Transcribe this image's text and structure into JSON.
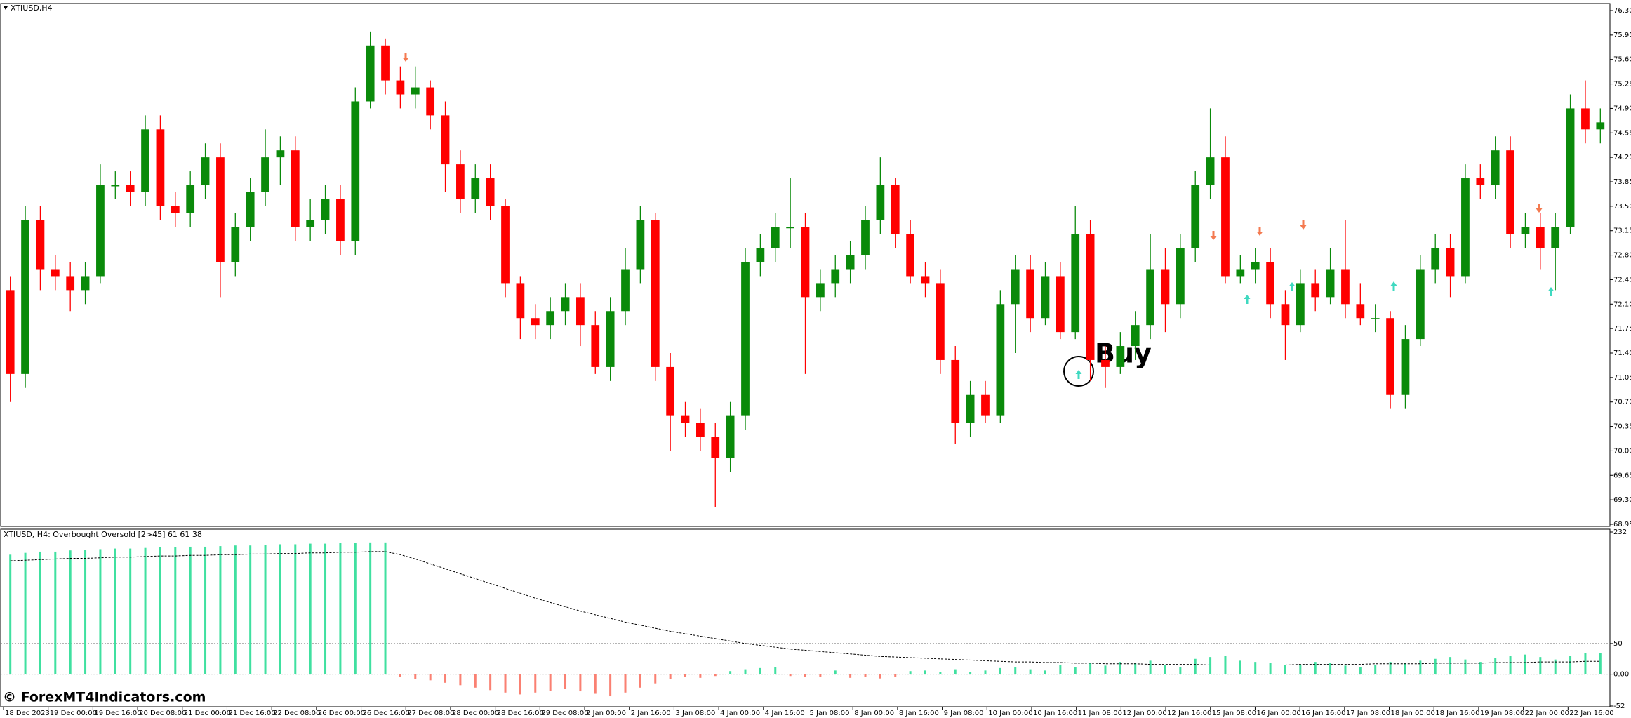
{
  "chart_data": [
    {
      "type": "candlestick",
      "title": "XTIUSD,H4",
      "open": [
        72.3,
        71.1,
        73.3,
        72.6,
        72.5,
        72.3,
        72.5,
        73.8,
        73.8,
        73.7,
        74.6,
        73.5,
        73.4,
        73.8,
        74.2,
        72.7,
        73.2,
        73.7,
        74.2,
        74.3,
        73.2,
        73.3,
        73.6,
        73.0,
        75.0,
        75.8,
        75.3,
        75.1,
        75.2,
        74.8,
        74.1,
        73.6,
        73.9,
        73.5,
        72.4,
        71.9,
        71.8,
        72.0,
        72.2,
        71.8,
        71.2,
        72.0,
        72.6,
        73.3,
        71.2,
        70.5,
        70.4,
        70.2,
        69.9,
        70.5,
        72.7,
        72.9,
        73.2,
        73.2,
        72.2,
        72.4,
        72.6,
        72.8,
        73.3,
        73.8,
        73.1,
        72.5,
        72.4,
        71.3,
        70.4,
        70.8,
        70.5,
        72.1,
        72.6,
        71.9,
        72.5,
        71.7,
        73.1,
        71.3,
        71.2,
        71.5,
        71.8,
        72.6,
        72.1,
        72.9,
        73.8,
        74.2,
        72.5,
        72.6,
        72.7,
        72.1,
        71.8,
        72.4,
        72.2,
        72.6,
        72.1,
        71.9,
        71.9,
        70.8,
        71.6,
        72.6,
        72.9,
        72.5,
        73.9,
        73.8,
        74.3,
        73.1,
        73.2,
        72.9,
        73.2,
        74.9,
        74.6
      ],
      "high": [
        72.5,
        73.5,
        73.5,
        72.8,
        72.7,
        72.7,
        74.1,
        74.0,
        74.0,
        74.8,
        74.8,
        73.7,
        74.0,
        74.4,
        74.4,
        73.4,
        73.9,
        74.6,
        74.5,
        74.5,
        73.6,
        73.8,
        73.8,
        75.2,
        76.0,
        75.9,
        75.5,
        75.5,
        75.3,
        75.0,
        74.3,
        74.1,
        74.1,
        73.6,
        72.5,
        72.1,
        72.2,
        72.4,
        72.4,
        72.0,
        72.2,
        72.9,
        73.5,
        73.4,
        71.4,
        70.7,
        70.6,
        70.4,
        70.7,
        72.9,
        73.1,
        73.4,
        73.9,
        73.4,
        72.6,
        72.8,
        73.0,
        73.5,
        74.2,
        73.9,
        73.3,
        72.7,
        72.6,
        71.5,
        71.0,
        71.0,
        72.3,
        72.8,
        72.8,
        72.7,
        72.7,
        73.5,
        73.3,
        71.5,
        71.7,
        72.0,
        73.1,
        72.9,
        73.1,
        74.0,
        74.9,
        74.5,
        72.8,
        72.9,
        72.9,
        72.3,
        72.6,
        72.6,
        72.9,
        73.3,
        72.4,
        72.1,
        72.0,
        71.8,
        72.8,
        73.1,
        73.1,
        74.1,
        74.1,
        74.5,
        74.5,
        73.4,
        73.4,
        73.4,
        75.1,
        75.3,
        74.9
      ],
      "low": [
        70.7,
        70.9,
        72.3,
        72.3,
        72.0,
        72.1,
        72.4,
        73.6,
        73.5,
        73.5,
        73.3,
        73.2,
        73.2,
        73.6,
        72.2,
        72.5,
        73.0,
        73.5,
        73.8,
        73.0,
        73.0,
        73.1,
        72.8,
        72.8,
        74.9,
        75.1,
        74.9,
        74.9,
        74.6,
        73.7,
        73.4,
        73.4,
        73.3,
        72.2,
        71.6,
        71.6,
        71.6,
        71.8,
        71.5,
        71.1,
        71.0,
        71.8,
        72.4,
        71.0,
        70.0,
        70.2,
        70.0,
        69.2,
        69.7,
        70.3,
        72.5,
        72.7,
        72.9,
        71.1,
        72.0,
        72.2,
        72.4,
        72.6,
        73.1,
        72.9,
        72.4,
        72.2,
        71.1,
        70.1,
        70.2,
        70.4,
        70.4,
        71.4,
        71.7,
        71.8,
        71.6,
        71.6,
        71.0,
        70.9,
        71.1,
        71.3,
        71.6,
        71.7,
        71.9,
        72.7,
        73.6,
        72.4,
        72.4,
        72.4,
        71.9,
        71.3,
        71.7,
        72.0,
        72.1,
        71.9,
        71.8,
        71.7,
        70.6,
        70.6,
        71.5,
        72.4,
        72.2,
        72.4,
        73.6,
        73.6,
        72.9,
        72.9,
        72.6,
        72.3,
        73.1,
        74.4,
        74.4
      ],
      "close": [
        71.1,
        73.3,
        72.6,
        72.5,
        72.3,
        72.5,
        73.8,
        73.8,
        73.7,
        74.6,
        73.5,
        73.4,
        73.8,
        74.2,
        72.7,
        73.2,
        73.7,
        74.2,
        74.3,
        73.2,
        73.3,
        73.6,
        73.0,
        75.0,
        75.8,
        75.3,
        75.1,
        75.2,
        74.8,
        74.1,
        73.6,
        73.9,
        73.5,
        72.4,
        71.9,
        71.8,
        72.0,
        72.2,
        71.8,
        71.2,
        72.0,
        72.6,
        73.3,
        71.2,
        70.5,
        70.4,
        70.2,
        69.9,
        70.5,
        72.7,
        72.9,
        73.2,
        73.2,
        72.2,
        72.4,
        72.6,
        72.8,
        73.3,
        73.8,
        73.1,
        72.5,
        72.4,
        71.3,
        70.4,
        70.8,
        70.5,
        72.1,
        72.6,
        71.9,
        72.5,
        71.7,
        73.1,
        71.3,
        71.2,
        71.5,
        71.8,
        72.6,
        72.1,
        72.9,
        73.8,
        74.2,
        72.5,
        72.6,
        72.7,
        72.1,
        71.8,
        72.4,
        72.2,
        72.6,
        72.1,
        71.9,
        71.9,
        70.8,
        71.6,
        72.6,
        72.9,
        72.5,
        73.9,
        73.8,
        74.3,
        73.1,
        73.2,
        72.9,
        73.2,
        74.9,
        74.6,
        74.7
      ],
      "up_color": "#0a8a0a",
      "down_color": "#ff0000",
      "ylim": [
        68.95,
        76.3
      ],
      "yticks": [
        68.95,
        {
          "value": 69.3,
          "label": "69.30"
        },
        69.65,
        {
          "value": 70,
          "label": "70.00"
        },
        70.35,
        {
          "value": 70.7,
          "label": "70.70"
        },
        71.05,
        {
          "value": 71.4,
          "label": "71.40"
        },
        71.75,
        {
          "value": 72.1,
          "label": "72.10"
        },
        72.45,
        {
          "value": 72.8,
          "label": "72.80"
        },
        73.15,
        {
          "value": 73.5,
          "label": "73.50"
        },
        73.85,
        {
          "value": 74.2,
          "label": "74.20"
        },
        74.55,
        {
          "value": 74.9,
          "label": "74.90"
        },
        75.25,
        {
          "value": 75.6,
          "label": "75.60"
        },
        75.95,
        {
          "value": 76.3,
          "label": "76.30"
        }
      ],
      "x_labels": [
        "18 Dec 2023",
        "19 Dec 00:00",
        "19 Dec 16:00",
        "20 Dec 08:00",
        "21 Dec 00:00",
        "21 Dec 16:00",
        "22 Dec 08:00",
        "26 Dec 00:00",
        "26 Dec 16:00",
        "27 Dec 08:00",
        "28 Dec 00:00",
        "28 Dec 16:00",
        "29 Dec 08:00",
        "2 Jan 00:00",
        "2 Jan 16:00",
        "3 Jan 08:00",
        "4 Jan 00:00",
        "4 Jan 16:00",
        "5 Jan 08:00",
        "8 Jan 00:00",
        "8 Jan 16:00",
        "9 Jan 08:00",
        "10 Jan 00:00",
        "10 Jan 16:00",
        "11 Jan 08:00",
        "12 Jan 00:00",
        "12 Jan 16:00",
        "15 Jan 08:00",
        "16 Jan 00:00",
        "16 Jan 16:00",
        "17 Jan 08:00",
        "18 Jan 00:00",
        "18 Jan 16:00",
        "19 Jan 08:00",
        "22 Jan 00:00",
        "22 Jan 16:00"
      ],
      "annotation": "Buy"
    },
    {
      "type": "histogram",
      "title": "XTIUSD, H4: Overbought Oversold [2>45]  61 61 38",
      "values": [
        195,
        198,
        200,
        200,
        202,
        203,
        204,
        205,
        205,
        206,
        207,
        207,
        208,
        208,
        209,
        210,
        210,
        211,
        212,
        212,
        213,
        213,
        214,
        214,
        215,
        215,
        -5,
        -8,
        -10,
        -14,
        -18,
        -22,
        -26,
        -30,
        -33,
        -30,
        -27,
        -24,
        -28,
        -32,
        -36,
        -30,
        -22,
        -15,
        -8,
        -4,
        -6,
        -3,
        5,
        8,
        10,
        12,
        -3,
        -5,
        -4,
        6,
        -6,
        -5,
        -7,
        -4,
        5,
        6,
        4,
        8,
        3,
        6,
        10,
        12,
        8,
        6,
        15,
        12,
        18,
        14,
        20,
        18,
        22,
        15,
        12,
        25,
        28,
        30,
        22,
        20,
        18,
        15,
        16,
        20,
        18,
        14,
        12,
        15,
        20,
        18,
        22,
        25,
        28,
        24,
        20,
        26,
        30,
        32,
        28,
        24,
        30,
        35,
        34
      ],
      "signal": [
        185,
        186,
        187,
        188,
        189,
        189,
        190,
        191,
        191,
        192,
        193,
        193,
        194,
        194,
        195,
        195,
        196,
        196,
        197,
        197,
        198,
        198,
        199,
        199,
        200,
        200,
        195,
        188,
        180,
        172,
        164,
        156,
        148,
        140,
        132,
        124,
        117,
        110,
        103,
        97,
        91,
        85,
        80,
        75,
        70,
        66,
        62,
        58,
        54,
        50,
        47,
        44,
        41,
        39,
        37,
        35,
        33,
        31,
        29,
        28,
        27,
        26,
        25,
        24,
        23,
        22,
        21,
        20,
        20,
        19,
        19,
        18,
        18,
        17,
        17,
        17,
        16,
        16,
        16,
        16,
        15,
        15,
        15,
        15,
        15,
        15,
        16,
        16,
        16,
        16,
        16,
        17,
        17,
        17,
        17,
        18,
        18,
        18,
        18,
        19,
        19,
        19,
        20,
        20,
        20,
        21,
        21
      ],
      "pos_color": "#40e0a0",
      "neg_color": "#fa8072",
      "signal_color": "#000000",
      "ylim": [
        -52,
        232
      ],
      "yticks": [
        -52,
        {
          "value": 0,
          "label": "0.00"
        },
        50,
        232
      ],
      "grid": true
    }
  ],
  "watermark": "© ForexMT4Indicators.com"
}
